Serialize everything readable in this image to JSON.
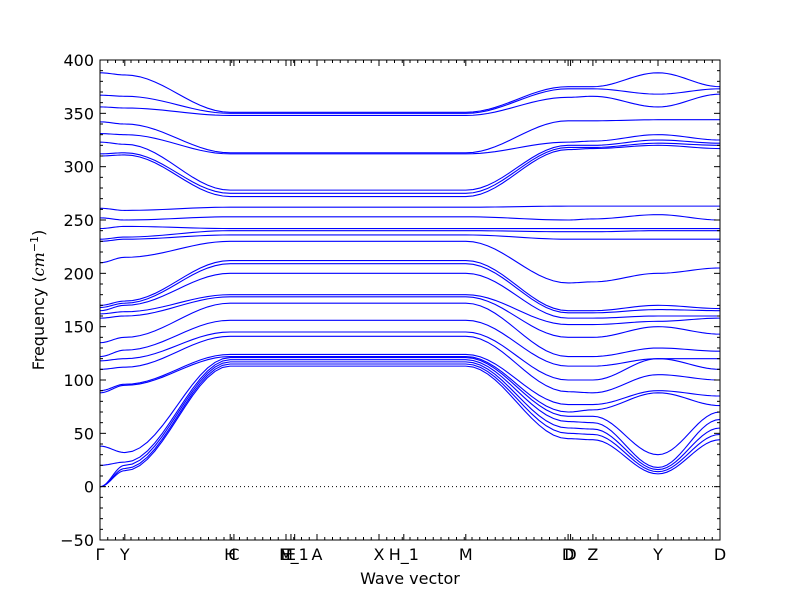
{
  "chart_data": {
    "type": "line",
    "xlabel": "Wave vector",
    "ylabel": "Frequency",
    "ylabel_unit": "cm",
    "ylabel_exp": "−1",
    "ylim": [
      -50,
      400
    ],
    "xlim": [
      0,
      100
    ],
    "grid": false,
    "line_color": "#0000ff",
    "zero_line_color": "#000000",
    "y_ticks": [
      -50,
      0,
      50,
      100,
      150,
      200,
      250,
      300,
      350,
      400
    ],
    "x_ticks": [
      {
        "label": "Γ",
        "x": 0
      },
      {
        "label": "Y",
        "x": 4
      },
      {
        "label": "H",
        "x": 21
      },
      {
        "label": "C",
        "x": 21.6
      },
      {
        "label": "M",
        "x": 30
      },
      {
        "label": "E",
        "x": 30.8
      },
      {
        "label": "E_1",
        "x": 31.4
      },
      {
        "label": "A",
        "x": 35
      },
      {
        "label": "X",
        "x": 45
      },
      {
        "label": "H_1",
        "x": 49
      },
      {
        "label": "M",
        "x": 59
      },
      {
        "label": "D",
        "x": 75.5
      },
      {
        "label": "D",
        "x": 75.9
      },
      {
        "label": "Z",
        "x": 79.5
      },
      {
        "label": "Y",
        "x": 90
      },
      {
        "label": "D",
        "x": 100
      }
    ],
    "x_breakpoints": [
      0,
      4,
      21,
      30,
      35,
      45,
      59,
      75.5,
      79.5,
      90,
      100
    ],
    "series": [
      {
        "values": [
          0,
          15,
          113,
          113,
          113,
          113,
          113,
          45,
          44,
          12,
          44
        ]
      },
      {
        "values": [
          0,
          17,
          115,
          115,
          115,
          115,
          115,
          50,
          49,
          14,
          49
        ]
      },
      {
        "values": [
          0,
          20,
          117,
          117,
          117,
          117,
          117,
          55,
          54,
          16,
          55
        ]
      },
      {
        "values": [
          20,
          23,
          119,
          119,
          119,
          119,
          119,
          61,
          60,
          18,
          63
        ]
      },
      {
        "values": [
          38,
          32,
          121,
          121,
          121,
          121,
          121,
          66,
          66,
          30,
          70
        ]
      },
      {
        "values": [
          88,
          95,
          122,
          122,
          122,
          122,
          122,
          70,
          72,
          88,
          76
        ]
      },
      {
        "values": [
          90,
          96,
          124,
          124,
          124,
          124,
          124,
          77,
          77,
          90,
          85
        ]
      },
      {
        "values": [
          110,
          112,
          141,
          141,
          141,
          141,
          141,
          89,
          88,
          105,
          100
        ]
      },
      {
        "values": [
          118,
          120,
          145,
          145,
          145,
          145,
          145,
          100,
          100,
          120,
          110
        ]
      },
      {
        "values": [
          122,
          128,
          156,
          156,
          156,
          156,
          156,
          113,
          113,
          120,
          120
        ]
      },
      {
        "values": [
          135,
          140,
          172,
          172,
          172,
          172,
          172,
          122,
          122,
          130,
          127
        ]
      },
      {
        "values": [
          158,
          160,
          178,
          178,
          178,
          178,
          178,
          140,
          140,
          150,
          143
        ]
      },
      {
        "values": [
          162,
          164,
          180,
          180,
          180,
          180,
          180,
          152,
          152,
          155,
          158
        ]
      },
      {
        "values": [
          165,
          170,
          200,
          200,
          200,
          200,
          200,
          158,
          158,
          160,
          160
        ]
      },
      {
        "values": [
          168,
          172,
          209,
          209,
          209,
          209,
          209,
          163,
          163,
          166,
          165
        ]
      },
      {
        "values": [
          170,
          174,
          212,
          212,
          212,
          212,
          212,
          165,
          165,
          170,
          167
        ]
      },
      {
        "values": [
          210,
          215,
          230,
          230,
          230,
          230,
          230,
          191,
          192,
          200,
          205
        ]
      },
      {
        "values": [
          230,
          232,
          236,
          236,
          236,
          236,
          236,
          232,
          232,
          232,
          232
        ]
      },
      {
        "values": [
          232,
          234,
          240,
          240,
          240,
          240,
          240,
          239,
          239,
          240,
          240
        ]
      },
      {
        "values": [
          242,
          244,
          242,
          242,
          242,
          242,
          242,
          242,
          242,
          242,
          242
        ]
      },
      {
        "values": [
          252,
          250,
          253,
          253,
          253,
          253,
          253,
          250,
          251,
          255,
          250
        ]
      },
      {
        "values": [
          261,
          259,
          262,
          262,
          262,
          262,
          262,
          263,
          263,
          263,
          263
        ]
      },
      {
        "values": [
          310,
          311,
          272,
          272,
          272,
          272,
          272,
          316,
          317,
          320,
          317
        ]
      },
      {
        "values": [
          312,
          313,
          275,
          275,
          275,
          275,
          275,
          318,
          318,
          322,
          320
        ]
      },
      {
        "values": [
          323,
          321,
          278,
          278,
          278,
          278,
          278,
          320,
          320,
          325,
          322
        ]
      },
      {
        "values": [
          331,
          330,
          312,
          312,
          312,
          312,
          312,
          323,
          324,
          330,
          325
        ]
      },
      {
        "values": [
          342,
          340,
          313,
          313,
          313,
          313,
          313,
          343,
          343,
          344,
          344
        ]
      },
      {
        "values": [
          356,
          355,
          348,
          348,
          348,
          348,
          348,
          365,
          366,
          356,
          368
        ]
      },
      {
        "values": [
          367,
          366,
          350,
          350,
          350,
          350,
          350,
          373,
          373,
          368,
          373
        ]
      },
      {
        "values": [
          388,
          386,
          351,
          351,
          351,
          351,
          351,
          375,
          375,
          388,
          375
        ]
      }
    ]
  }
}
